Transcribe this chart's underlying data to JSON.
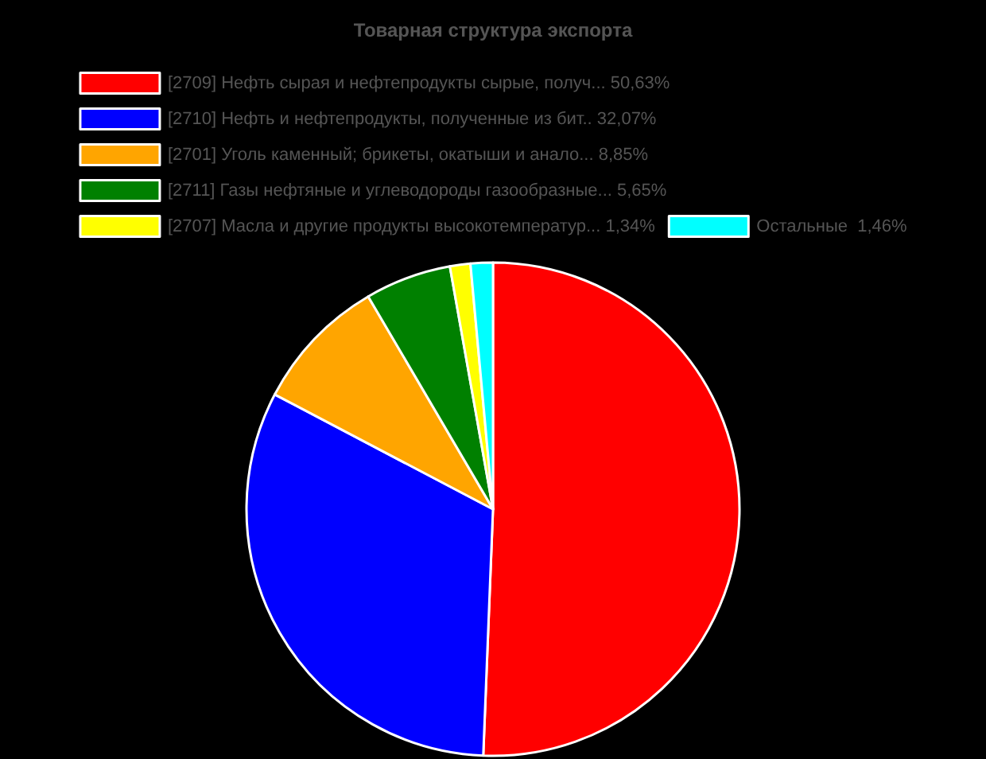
{
  "chart_data": {
    "type": "pie",
    "title": "Товарная структура экспорта",
    "legend": "top",
    "categories": [
      "[2709] Нефть сырая и нефтепродукты сырые, получ... 50,63%",
      "[2710] Нефть и нефтепродукты, полученные из бит.. 32,07%",
      "[2701] Уголь каменный; брикеты, окатыши и анало... 8,85%",
      "[2711] Газы нефтяные и углеводороды газообразные... 5,65%",
      "[2707] Масла и другие продукты высокотемператур... 1,34%",
      "Остальные  1,46%"
    ],
    "values": [
      50.63,
      32.07,
      8.85,
      5.65,
      1.34,
      1.46
    ],
    "colors": [
      "#ff0000",
      "#0000ff",
      "#ffa500",
      "#008000",
      "#ffff00",
      "#00ffff"
    ]
  }
}
